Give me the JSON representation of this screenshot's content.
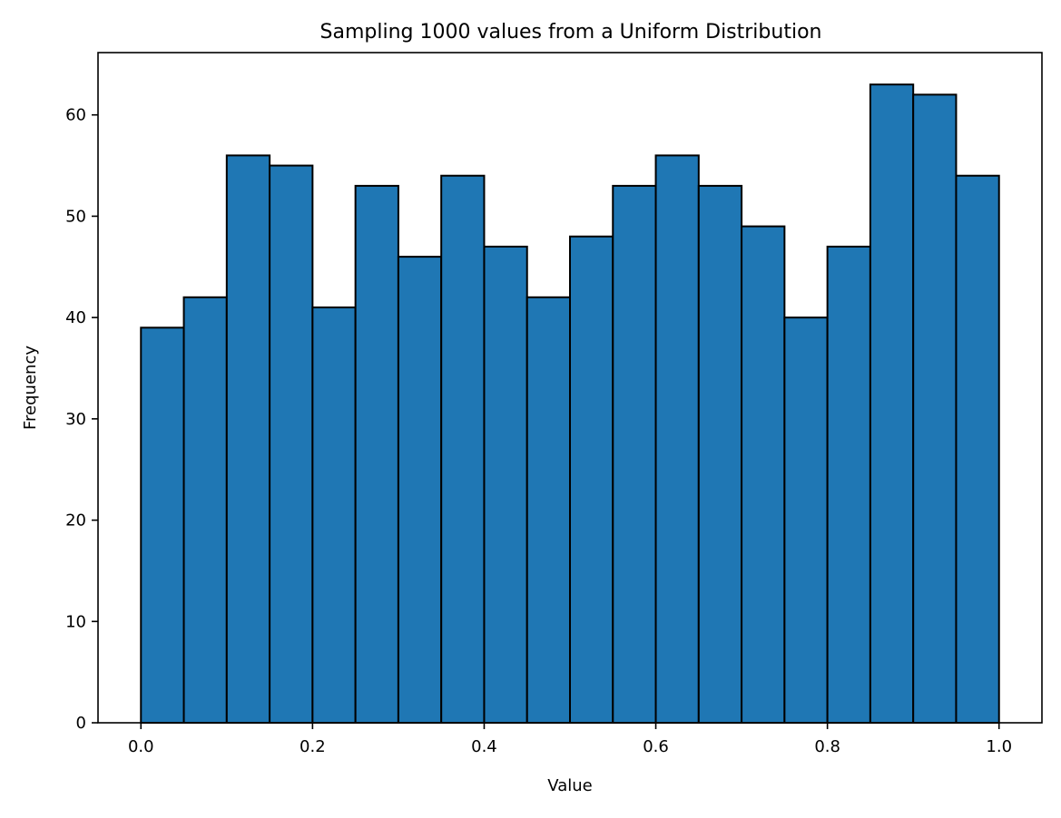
{
  "chart_data": {
    "type": "bar",
    "title": "Sampling 1000 values from a Uniform Distribution",
    "xlabel": "Value",
    "ylabel": "Frequency",
    "bin_edges": [
      0.0,
      0.05,
      0.1,
      0.15,
      0.2,
      0.25,
      0.3,
      0.35,
      0.4,
      0.45,
      0.5,
      0.55,
      0.6,
      0.65,
      0.7,
      0.75,
      0.8,
      0.85,
      0.9,
      0.95,
      1.0
    ],
    "values": [
      39,
      42,
      56,
      55,
      41,
      53,
      46,
      54,
      47,
      42,
      48,
      53,
      56,
      53,
      49,
      40,
      47,
      63,
      62,
      54
    ],
    "xlim": [
      -0.05,
      1.05
    ],
    "ylim": [
      0,
      66.15
    ],
    "x_ticks": [
      0.0,
      0.2,
      0.4,
      0.6,
      0.8,
      1.0
    ],
    "x_tick_labels": [
      "0.0",
      "0.2",
      "0.4",
      "0.6",
      "0.8",
      "1.0"
    ],
    "y_ticks": [
      0,
      10,
      20,
      30,
      40,
      50,
      60
    ],
    "y_tick_labels": [
      "0",
      "10",
      "20",
      "30",
      "40",
      "50",
      "60"
    ],
    "grid": false,
    "legend": "none",
    "bar_color": "#1f77b4",
    "bar_edge_color": "#000000"
  }
}
